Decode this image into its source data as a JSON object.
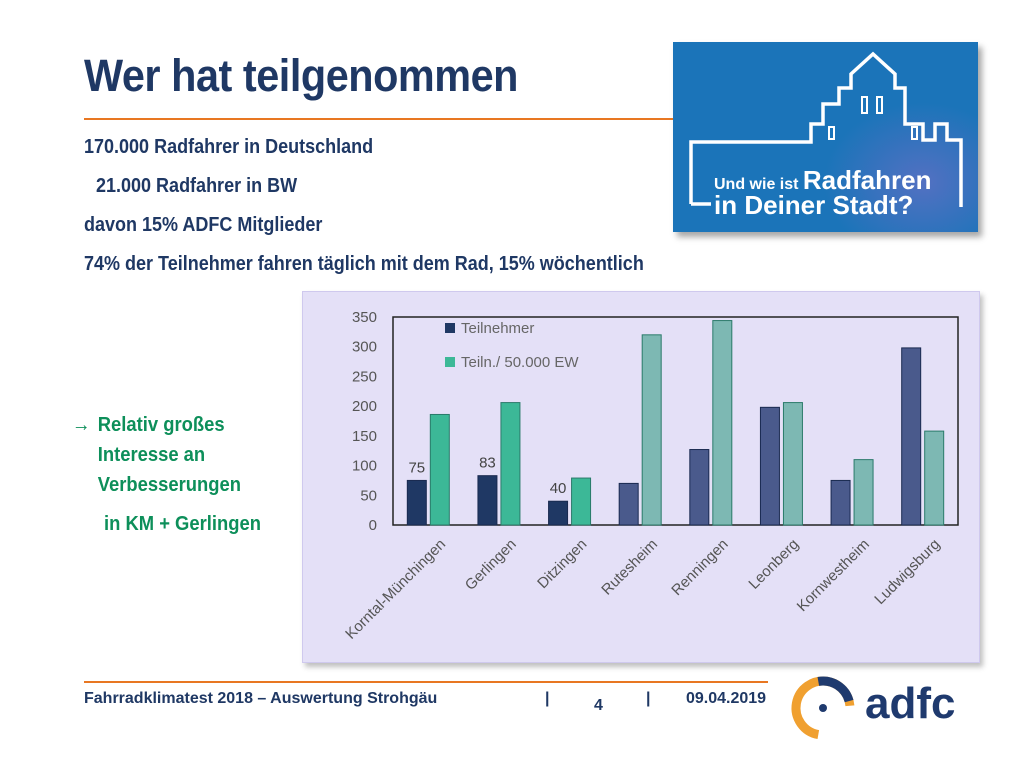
{
  "slide": {
    "title": "Wer hat teilgenommen",
    "bullets": [
      "170.000 Radfahrer in Deutschland",
      "21.000 Radfahrer in BW",
      "davon 15% ADFC Mitglieder",
      "74% der Teilnehmer fahren täglich mit dem Rad, 15% wöchentlich"
    ],
    "note": {
      "arrow": "→",
      "lines": [
        "Relativ großes",
        "Interesse an",
        "Verbesserungen"
      ],
      "last": "in KM + Gerlingen"
    },
    "banner": {
      "line1_small": "Und wie ist",
      "line1_big": "Radfahren",
      "line2": "in Deiner Stadt?"
    }
  },
  "footer": {
    "left": "Fahrradklimatest 2018 – Auswertung Strohgäu",
    "sep1": "|",
    "page": "4",
    "sep2": "|",
    "date": "09.04.2019",
    "logo_text": "adfc"
  },
  "colors": {
    "title": "#1f3864",
    "accent": "#e87722",
    "note": "#0d8f5a",
    "series1_highlight": "#1f3864",
    "series1_muted": "#4a5a8c",
    "series2_highlight": "#3cb897",
    "series2_muted": "#7db8b3"
  },
  "chart_data": {
    "type": "bar",
    "categories": [
      "Korntal-Münchingen",
      "Gerlingen",
      "Ditzingen",
      "Rutesheim",
      "Renningen",
      "Leonberg",
      "Kornwestheim",
      "Ludwigsburg"
    ],
    "series": [
      {
        "name": "Teilnehmer",
        "values": [
          75,
          83,
          40,
          70,
          127,
          198,
          75,
          298
        ]
      },
      {
        "name": "Teiln./ 50.000 EW",
        "values": [
          186,
          206,
          79,
          320,
          344,
          206,
          110,
          158
        ]
      }
    ],
    "data_labels": [
      "75",
      "83",
      "40"
    ],
    "yticks": [
      "0",
      "50",
      "100",
      "150",
      "200",
      "250",
      "300",
      "350"
    ],
    "ylim": [
      0,
      350
    ],
    "legend_position": "top-left",
    "highlighted_categories": [
      "Korntal-Münchingen",
      "Gerlingen",
      "Ditzingen"
    ]
  }
}
